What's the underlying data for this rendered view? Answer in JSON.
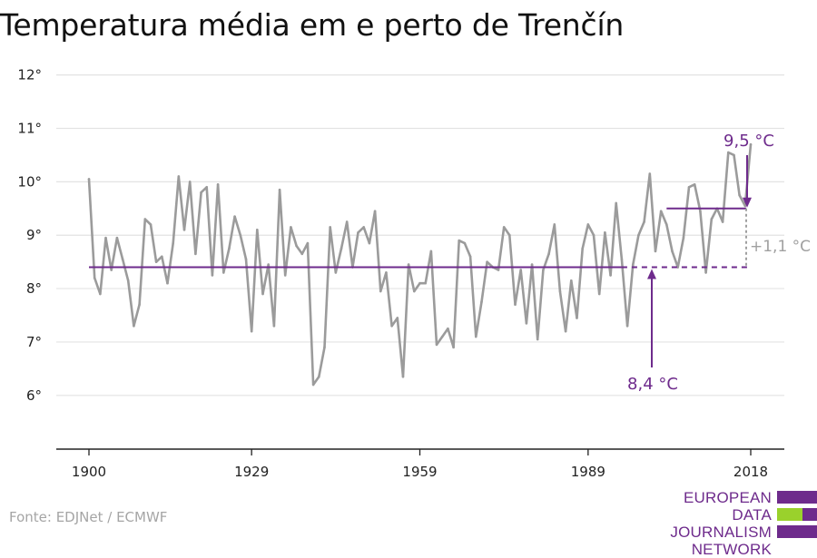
{
  "title": "Temperatura média em e perto de Trenčín",
  "source": "Fonte: EDJNet / ECMWF",
  "logo": {
    "lines": [
      "EUROPEAN",
      "DATA JOURNALISM",
      "NETWORK"
    ],
    "colors": {
      "primary": "#6e2b8c",
      "accent": "#9ad12c"
    }
  },
  "chart_data": {
    "type": "line",
    "x_ticks": [
      1900,
      1929,
      1959,
      1989,
      2018
    ],
    "y_ticks": [
      6,
      7,
      8,
      9,
      10,
      11,
      12
    ],
    "y_tick_labels": [
      "6°",
      "7°",
      "8°",
      "9°",
      "10°",
      "11°",
      "12°"
    ],
    "xlim": [
      1900,
      2018
    ],
    "ylim": [
      5.3,
      12.3
    ],
    "grid": true,
    "series": [
      {
        "color": "#9b9b9b",
        "x": [
          1900,
          1901,
          1902,
          1903,
          1904,
          1905,
          1906,
          1907,
          1908,
          1909,
          1910,
          1911,
          1912,
          1913,
          1914,
          1915,
          1916,
          1917,
          1918,
          1919,
          1920,
          1921,
          1922,
          1923,
          1924,
          1925,
          1926,
          1927,
          1928,
          1929,
          1930,
          1931,
          1932,
          1933,
          1934,
          1935,
          1936,
          1937,
          1938,
          1939,
          1940,
          1941,
          1942,
          1943,
          1944,
          1945,
          1946,
          1947,
          1948,
          1949,
          1950,
          1951,
          1952,
          1953,
          1954,
          1955,
          1956,
          1957,
          1958,
          1959,
          1960,
          1961,
          1962,
          1963,
          1964,
          1965,
          1966,
          1967,
          1968,
          1969,
          1970,
          1971,
          1972,
          1973,
          1974,
          1975,
          1976,
          1977,
          1978,
          1979,
          1980,
          1981,
          1982,
          1983,
          1984,
          1985,
          1986,
          1987,
          1988,
          1989,
          1990,
          1991,
          1992,
          1993,
          1994,
          1995,
          1996,
          1997,
          1998,
          1999,
          2000,
          2001,
          2002,
          2003,
          2004,
          2005,
          2006,
          2007,
          2008,
          2009,
          2010,
          2011,
          2012,
          2013,
          2014,
          2015,
          2016,
          2017,
          2018
        ],
        "y": [
          10.05,
          8.2,
          7.9,
          8.95,
          8.35,
          8.95,
          8.55,
          8.15,
          7.3,
          7.7,
          9.3,
          9.2,
          8.5,
          8.6,
          8.1,
          8.85,
          10.1,
          9.1,
          10.0,
          8.65,
          9.8,
          9.9,
          8.25,
          9.95,
          8.3,
          8.75,
          9.35,
          9.0,
          8.55,
          7.2,
          9.1,
          7.9,
          8.45,
          7.3,
          9.85,
          8.25,
          9.15,
          8.8,
          8.65,
          8.85,
          6.2,
          6.35,
          6.9,
          9.15,
          8.3,
          8.75,
          9.25,
          8.4,
          9.05,
          9.15,
          8.85,
          9.45,
          7.95,
          8.3,
          7.3,
          7.45,
          6.35,
          8.45,
          7.95,
          8.1,
          8.1,
          8.7,
          6.95,
          7.1,
          7.25,
          6.9,
          8.9,
          8.85,
          8.6,
          7.1,
          7.75,
          8.5,
          8.4,
          8.35,
          9.15,
          9.0,
          7.7,
          8.35,
          7.35,
          8.45,
          7.05,
          8.35,
          8.65,
          9.2,
          7.95,
          7.2,
          8.15,
          7.45,
          8.75,
          9.2,
          9.0,
          7.9,
          9.05,
          8.25,
          9.6,
          8.55,
          7.3,
          8.45,
          9.0,
          9.25,
          10.15,
          8.7,
          9.45,
          9.2,
          8.7,
          8.4,
          8.95,
          9.9,
          9.95,
          9.45,
          8.3,
          9.3,
          9.5,
          9.25,
          10.55,
          10.5,
          9.75,
          9.55,
          10.7
        ]
      }
    ],
    "reference_lines": {
      "baseline": {
        "value": 8.4,
        "x_start": 1900,
        "x_end": 2018,
        "dashed_from": 1995,
        "color": "#6e2b8c"
      },
      "recent": {
        "value": 9.5,
        "x_start": 2003,
        "x_end": 2018,
        "color": "#6e2b8c"
      }
    },
    "annotations": {
      "recent_label": "9,5 °C",
      "baseline_label": "8,4 °C",
      "difference_label": "+1,1 °C",
      "label_color": "#6e2b8c",
      "difference_color": "#a0a0a0"
    }
  }
}
